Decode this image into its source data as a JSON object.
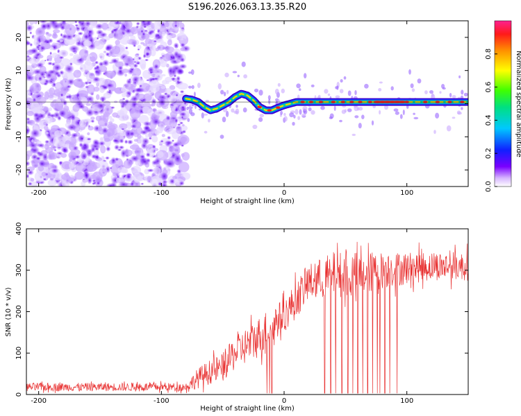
{
  "title": "S196.2026.063.13.35.R20",
  "chart_data": [
    {
      "type": "heatmap",
      "title": "S196.2026.063.13.35.R20",
      "xlabel": "Height of straight line (km)",
      "ylabel": "Frequency (Hz)",
      "xlim": [
        -210,
        150
      ],
      "ylim": [
        -25,
        25
      ],
      "xticks": [
        -200,
        -100,
        0,
        100
      ],
      "yticks": [
        -20,
        -10,
        0,
        10,
        20
      ],
      "noise_region_x": [
        -210,
        -80
      ],
      "ridge": {
        "x": [
          -80,
          -75,
          -70,
          -65,
          -60,
          -55,
          -50,
          -45,
          -40,
          -35,
          -30,
          -25,
          -20,
          -15,
          -10,
          -5,
          0,
          5,
          10,
          20,
          40,
          60,
          80,
          100,
          120,
          150
        ],
        "freq": [
          1.5,
          1.2,
          0.5,
          -1.0,
          -2.0,
          -1.5,
          -0.5,
          0.5,
          2.0,
          3.0,
          2.5,
          1.0,
          -1.0,
          -2.0,
          -2.0,
          -1.2,
          -0.5,
          0.0,
          0.5,
          0.5,
          0.5,
          0.5,
          0.5,
          0.5,
          0.5,
          0.5
        ]
      },
      "colorbar": {
        "label": "Normalized spectral amplitude",
        "range": [
          0,
          1
        ],
        "ticks": [
          "0.0",
          "0.2",
          "0.4",
          "0.6",
          "0.8"
        ]
      }
    },
    {
      "type": "line",
      "xlabel": "Height of straight line (km)",
      "ylabel": "SNR (10 * v/v)",
      "xlim": [
        -210,
        150
      ],
      "ylim": [
        0,
        400
      ],
      "xticks": [
        -200,
        -100,
        0,
        100
      ],
      "yticks": [
        0,
        100,
        200,
        300,
        400
      ],
      "color": "#e83030",
      "series": [
        {
          "name": "SNR",
          "x": [
            -210,
            -150,
            -100,
            -80,
            -70,
            -60,
            -50,
            -40,
            -30,
            -20,
            -10,
            0,
            10,
            20,
            30,
            40,
            50,
            60,
            80,
            100,
            120,
            150
          ],
          "mean": [
            18,
            18,
            18,
            18,
            40,
            55,
            65,
            100,
            120,
            140,
            170,
            190,
            230,
            270,
            280,
            290,
            290,
            290,
            300,
            305,
            310,
            310
          ],
          "noise": [
            10,
            10,
            10,
            10,
            25,
            30,
            35,
            40,
            45,
            50,
            45,
            40,
            45,
            45,
            50,
            55,
            55,
            55,
            45,
            40,
            35,
            35
          ]
        }
      ],
      "dropout_x": [
        -14,
        -12,
        -10,
        33,
        38,
        42,
        47,
        52,
        56,
        60,
        64,
        68,
        72,
        76,
        78,
        82,
        86,
        92
      ]
    }
  ]
}
